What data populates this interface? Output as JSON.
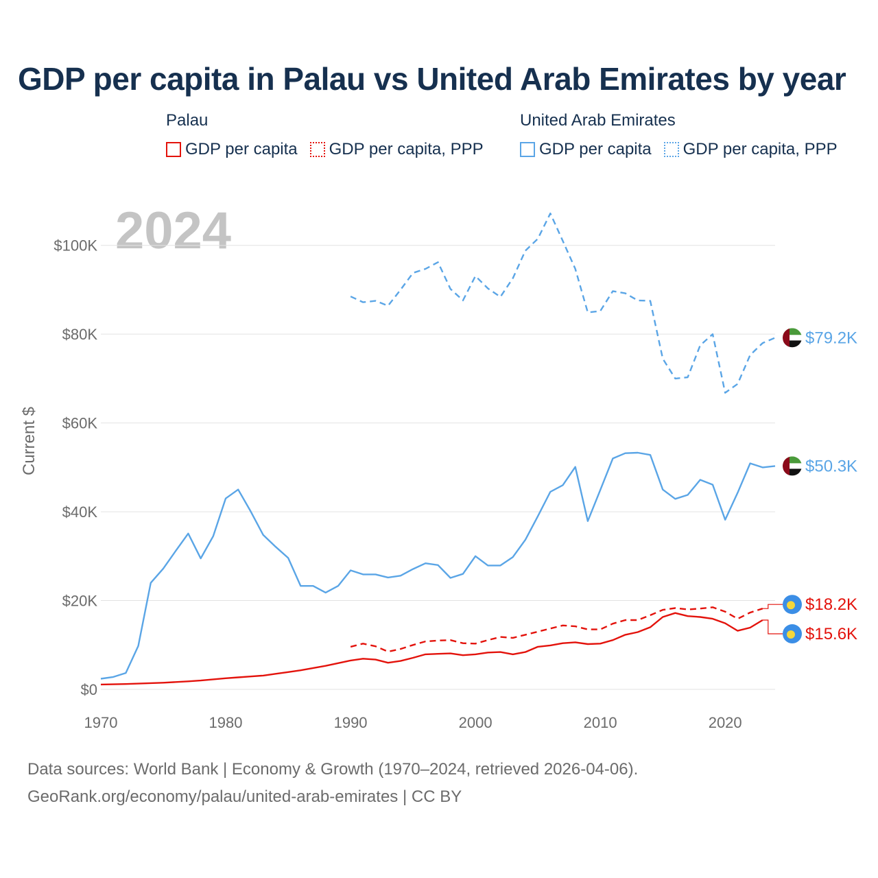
{
  "title": "GDP per capita in Palau vs United Arab Emirates by year",
  "year_watermark": "2024",
  "legend": {
    "palau": {
      "title": "Palau",
      "items": [
        "GDP per capita",
        "GDP per capita, PPP"
      ]
    },
    "uae": {
      "title": "United Arab Emirates",
      "items": [
        "GDP per capita",
        "GDP per capita, PPP"
      ]
    }
  },
  "footer": {
    "line1": "Data sources: World Bank | Economy & Growth (1970–2024, retrieved 2026-04-06).",
    "line2": "GeoRank.org/economy/palau/united-arab-emirates | CC BY"
  },
  "colors": {
    "palau": "#e3120b",
    "uae": "#5aa5e6",
    "grid": "#e2e2e2",
    "axis_text": "#6b6b6b",
    "watermark": "#c4c4c4"
  },
  "chart_data": {
    "type": "line",
    "title": "GDP per capita in Palau vs United Arab Emirates by year",
    "xlabel": "",
    "ylabel": "Current $",
    "xlim": [
      1970,
      2024
    ],
    "ylim": [
      0,
      110000
    ],
    "x_ticks": [
      1970,
      1980,
      1990,
      2000,
      2010,
      2020
    ],
    "x_tick_labels": [
      "1970",
      "1980",
      "1990",
      "2000",
      "2010",
      "2020"
    ],
    "y_ticks": [
      0,
      20000,
      40000,
      60000,
      80000,
      100000
    ],
    "y_tick_labels": [
      "$0",
      "$20K",
      "$40K",
      "$60K",
      "$80K",
      "$100K"
    ],
    "grid": true,
    "series": [
      {
        "name": "United Arab Emirates GDP per capita, PPP",
        "country": "uae",
        "style": "dashed",
        "end_label": "$79.2K",
        "x": [
          1990,
          1991,
          1992,
          1993,
          1994,
          1995,
          1996,
          1997,
          1998,
          1999,
          2000,
          2001,
          2002,
          2003,
          2004,
          2005,
          2006,
          2007,
          2008,
          2009,
          2010,
          2011,
          2012,
          2013,
          2014,
          2015,
          2016,
          2017,
          2018,
          2019,
          2020,
          2021,
          2022,
          2023,
          2024
        ],
        "values": [
          88500,
          87200,
          87500,
          86400,
          90000,
          93800,
          94700,
          96200,
          90200,
          87600,
          93100,
          90300,
          88400,
          92600,
          98800,
          101500,
          107200,
          101000,
          94700,
          84900,
          85200,
          89700,
          89200,
          87600,
          87500,
          74500,
          70000,
          70300,
          77500,
          80000,
          66800,
          68800,
          75300,
          78000,
          79200
        ]
      },
      {
        "name": "United Arab Emirates GDP per capita",
        "country": "uae",
        "style": "solid",
        "end_label": "$50.3K",
        "x": [
          1970,
          1971,
          1972,
          1973,
          1974,
          1975,
          1976,
          1977,
          1978,
          1979,
          1980,
          1981,
          1982,
          1983,
          1984,
          1985,
          1986,
          1987,
          1988,
          1989,
          1990,
          1991,
          1992,
          1993,
          1994,
          1995,
          1996,
          1997,
          1998,
          1999,
          2000,
          2001,
          2002,
          2003,
          2004,
          2005,
          2006,
          2007,
          2008,
          2009,
          2010,
          2011,
          2012,
          2013,
          2014,
          2015,
          2016,
          2017,
          2018,
          2019,
          2020,
          2021,
          2022,
          2023,
          2024
        ],
        "values": [
          2400,
          2800,
          3700,
          9800,
          24000,
          27200,
          31200,
          35100,
          29500,
          34500,
          43000,
          45000,
          40100,
          34800,
          32100,
          29600,
          23300,
          23300,
          21800,
          23300,
          26800,
          25900,
          25900,
          25200,
          25600,
          27100,
          28400,
          28000,
          25100,
          26000,
          30000,
          27900,
          27900,
          29800,
          33700,
          39000,
          44500,
          46000,
          50100,
          37900,
          44900,
          52000,
          53200,
          53300,
          52800,
          45000,
          42900,
          43800,
          47200,
          46100,
          38200,
          44300,
          50900,
          50000,
          50300
        ]
      },
      {
        "name": "Palau GDP per capita, PPP",
        "country": "palau",
        "style": "dashed",
        "end_label": "$18.2K",
        "x": [
          1990,
          1991,
          1992,
          1993,
          1994,
          1995,
          1996,
          1997,
          1998,
          1999,
          2000,
          2001,
          2002,
          2003,
          2004,
          2005,
          2006,
          2007,
          2008,
          2009,
          2010,
          2011,
          2012,
          2013,
          2014,
          2015,
          2016,
          2017,
          2018,
          2019,
          2020,
          2021,
          2022,
          2023
        ],
        "values": [
          9600,
          10300,
          9700,
          8500,
          9100,
          10000,
          10800,
          11000,
          11100,
          10400,
          10300,
          11100,
          11800,
          11600,
          12300,
          13000,
          13700,
          14400,
          14200,
          13500,
          13500,
          14800,
          15600,
          15600,
          16700,
          17900,
          18300,
          18000,
          18200,
          18500,
          17500,
          15900,
          17300,
          18200
        ]
      },
      {
        "name": "Palau GDP per capita",
        "country": "palau",
        "style": "solid",
        "end_label": "$15.6K",
        "x": [
          1970,
          1971,
          1972,
          1973,
          1974,
          1975,
          1976,
          1977,
          1978,
          1979,
          1980,
          1981,
          1982,
          1983,
          1984,
          1985,
          1986,
          1987,
          1988,
          1989,
          1990,
          1991,
          1992,
          1993,
          1994,
          1995,
          1996,
          1997,
          1998,
          1999,
          2000,
          2001,
          2002,
          2003,
          2004,
          2005,
          2006,
          2007,
          2008,
          2009,
          2010,
          2011,
          2012,
          2013,
          2014,
          2015,
          2016,
          2017,
          2018,
          2019,
          2020,
          2021,
          2022,
          2023
        ],
        "values": [
          1100,
          1150,
          1200,
          1300,
          1400,
          1500,
          1650,
          1800,
          2000,
          2250,
          2500,
          2700,
          2900,
          3100,
          3500,
          3900,
          4300,
          4800,
          5300,
          5900,
          6500,
          6900,
          6700,
          6000,
          6400,
          7100,
          7900,
          8000,
          8100,
          7700,
          7900,
          8300,
          8400,
          7900,
          8400,
          9600,
          9900,
          10400,
          10600,
          10200,
          10300,
          11100,
          12300,
          12900,
          14000,
          16300,
          17200,
          16500,
          16300,
          15900,
          14900,
          13200,
          13900,
          15600
        ]
      }
    ]
  }
}
